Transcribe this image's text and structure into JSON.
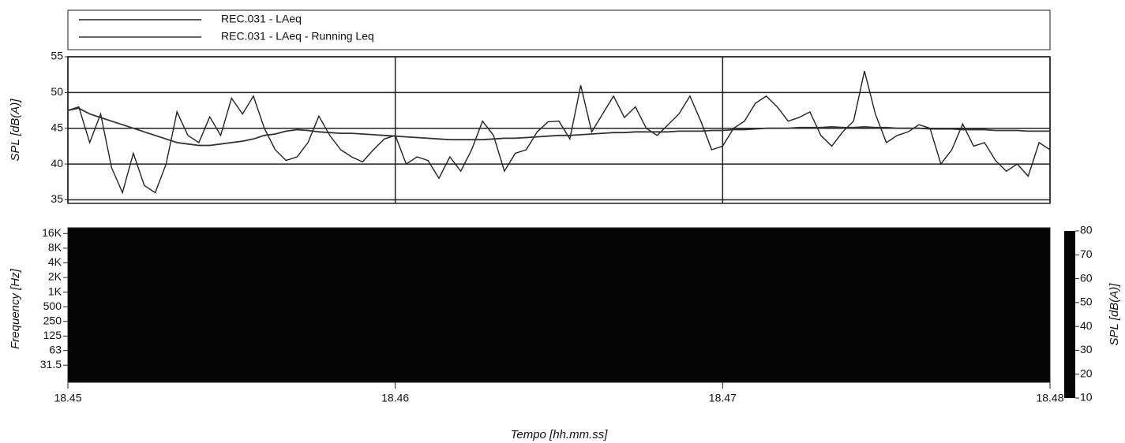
{
  "chart_data": [
    {
      "type": "line",
      "ylabel": "SPL [dB(A)]",
      "xlim": [
        0,
        180
      ],
      "xticks": [
        0,
        60,
        120,
        180
      ],
      "ylim": [
        34.5,
        55
      ],
      "yticks": [
        35,
        40,
        45,
        50,
        55
      ],
      "grid": true,
      "x": [
        0,
        2,
        4,
        6,
        8,
        10,
        12,
        14,
        16,
        18,
        20,
        22,
        24,
        26,
        28,
        30,
        32,
        34,
        36,
        38,
        40,
        42,
        44,
        46,
        48,
        50,
        52,
        54,
        56,
        58,
        60,
        62,
        64,
        66,
        68,
        70,
        72,
        74,
        76,
        78,
        80,
        82,
        84,
        86,
        88,
        90,
        92,
        94,
        96,
        98,
        100,
        102,
        104,
        106,
        108,
        110,
        112,
        114,
        116,
        118,
        120,
        122,
        124,
        126,
        128,
        130,
        132,
        134,
        136,
        138,
        140,
        142,
        144,
        146,
        148,
        150,
        152,
        154,
        156,
        158,
        160,
        162,
        164,
        166,
        168,
        170,
        172,
        174,
        176,
        178,
        180
      ],
      "series": [
        {
          "name": "REC.031 - LAeq",
          "color": "#222222",
          "values": [
            47.5,
            48,
            43,
            47,
            39.5,
            36,
            41.5,
            37,
            36,
            40,
            47.3,
            44,
            43,
            46.6,
            44,
            49.2,
            47,
            49.5,
            45,
            42,
            40.5,
            41,
            43,
            46.7,
            44,
            42,
            41,
            40.3,
            42,
            43.5,
            44,
            40,
            41,
            40.5,
            38,
            41,
            39,
            42,
            46,
            44,
            39,
            41.5,
            42,
            44.5,
            45.9,
            46,
            43.5,
            51,
            44.5,
            47,
            49.5,
            46.5,
            48,
            45,
            44,
            45.5,
            47,
            49.5,
            46,
            42,
            42.5,
            45,
            46,
            48.5,
            49.5,
            48,
            46,
            46.5,
            47.3,
            44,
            42.5,
            44.5,
            46,
            53,
            47,
            43,
            44,
            44.5,
            45.5,
            45,
            40,
            42,
            45.6,
            42.5,
            43,
            40.5,
            39,
            40,
            38.3,
            43,
            42
          ]
        },
        {
          "name": "REC.031 - LAeq - Running Leq",
          "color": "#333333",
          "values": [
            47.5,
            47.8,
            47,
            46.5,
            46,
            45.5,
            45,
            44.5,
            44,
            43.5,
            43,
            42.8,
            42.6,
            42.6,
            42.8,
            43,
            43.2,
            43.5,
            44,
            44.2,
            44.6,
            44.8,
            44.7,
            44.5,
            44.4,
            44.3,
            44.3,
            44.2,
            44.1,
            44,
            43.9,
            43.8,
            43.7,
            43.6,
            43.5,
            43.4,
            43.4,
            43.4,
            43.4,
            43.5,
            43.6,
            43.6,
            43.7,
            43.8,
            43.9,
            44,
            44,
            44.1,
            44.2,
            44.3,
            44.4,
            44.4,
            44.5,
            44.5,
            44.5,
            44.5,
            44.6,
            44.6,
            44.6,
            44.7,
            44.7,
            44.8,
            44.8,
            44.9,
            45,
            45,
            45,
            45.1,
            45.1,
            45.1,
            45.2,
            45.1,
            45.1,
            45.2,
            45.1,
            45.1,
            45,
            45,
            45,
            44.9,
            44.9,
            44.9,
            44.8,
            44.8,
            44.8,
            44.7,
            44.7,
            44.7,
            44.6,
            44.6,
            44.6
          ]
        }
      ]
    },
    {
      "type": "spectrogram",
      "xlabel": "Tempo [hh.mm.ss]",
      "ylabel": "Frequency [Hz]",
      "xlim": [
        0,
        180
      ],
      "xticks": [
        {
          "value": 0,
          "label": "18.45"
        },
        {
          "value": 60,
          "label": "18.46"
        },
        {
          "value": 120,
          "label": "18.47"
        },
        {
          "value": 180,
          "label": "18.48"
        }
      ],
      "ylim": [
        14,
        21000
      ],
      "log_y": true,
      "yticks": [
        {
          "value": 16000,
          "label": "16K"
        },
        {
          "value": 8000,
          "label": "8K"
        },
        {
          "value": 4000,
          "label": "4K"
        },
        {
          "value": 2000,
          "label": "2K"
        },
        {
          "value": 1000,
          "label": "1K"
        },
        500,
        250,
        125,
        63,
        31.5
      ],
      "colorbar_label": "SPL [dB(A)]",
      "colorbar_lim": [
        10,
        80
      ],
      "colorbar_ticks": [
        10,
        20,
        30,
        40,
        50,
        60,
        70,
        80
      ]
    }
  ]
}
